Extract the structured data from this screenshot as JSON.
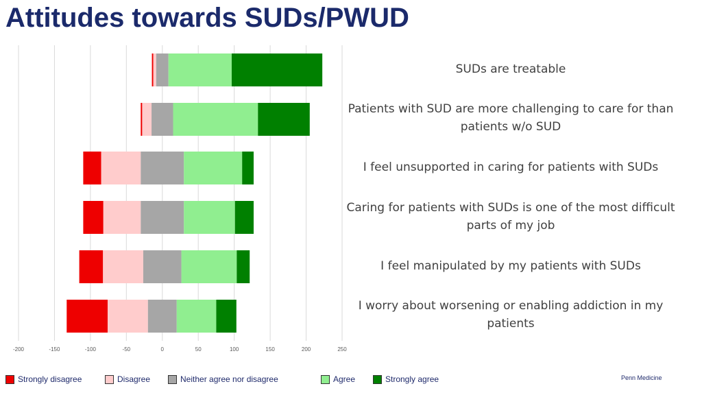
{
  "page": {
    "title": "Attitudes towards SUDs/PWUD",
    "footer": "Penn Medicine"
  },
  "chart_data": {
    "type": "bar",
    "orientation": "horizontal",
    "stacked": "diverging",
    "xlim": [
      -200,
      250
    ],
    "xticks": [
      -200,
      -150,
      -100,
      -50,
      0,
      50,
      100,
      150,
      200,
      250
    ],
    "grid": true,
    "legend_position": "bottom",
    "categories": [
      "SUDs are treatable",
      "Patients with SUD are more challenging to care for than patients w/o SUD",
      "I feel unsupported in caring for patients with SUDs",
      "Caring for patients with SUDs is one of the most difficult parts of my job",
      "I feel manipulated by my patients with SUDs",
      "I worry about worsening or enabling addiction in my patients"
    ],
    "series": [
      {
        "name": "Strongly disagree",
        "color": "#ee0000",
        "values": [
          2,
          2,
          25,
          28,
          33,
          57
        ]
      },
      {
        "name": "Disagree",
        "color": "#ffcccc",
        "values": [
          4,
          13,
          55,
          52,
          56,
          56
        ]
      },
      {
        "name": "Neither agree nor disagree",
        "color": "#a6a6a6",
        "values": [
          17,
          30,
          60,
          60,
          53,
          40
        ]
      },
      {
        "name": "Agree",
        "color": "#90ee90",
        "values": [
          88,
          118,
          81,
          71,
          77,
          55
        ]
      },
      {
        "name": "Strongly agree",
        "color": "#008000",
        "values": [
          126,
          72,
          16,
          26,
          18,
          28
        ]
      }
    ]
  }
}
